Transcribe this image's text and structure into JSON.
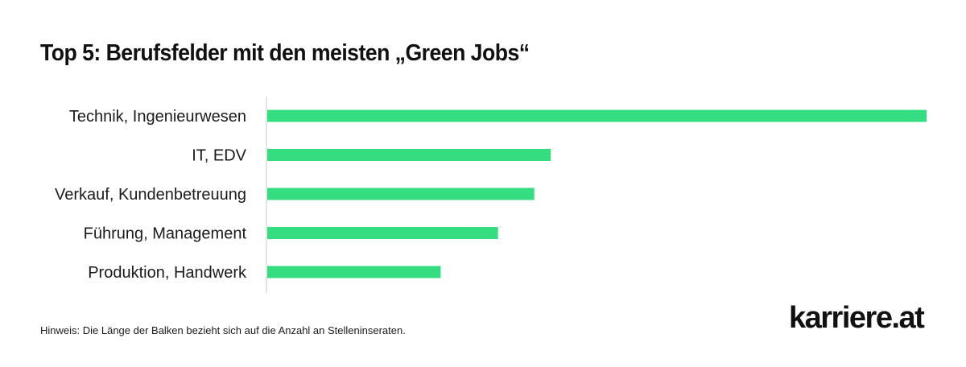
{
  "title": "Top 5: Berufsfelder mit den meisten „Green Jobs“",
  "note": "Hinweis: Die Länge der Balken bezieht sich auf die Anzahl an Stelleninseraten.",
  "logo_text": "karriere.at",
  "colors": {
    "bar": "#34dd80",
    "axis": "#c8c8c8",
    "text": "#1a1a1a"
  },
  "chart_data": {
    "type": "bar",
    "orientation": "horizontal",
    "categories": [
      "Technik, Ingenieurwesen",
      "IT, EDV",
      "Verkauf, Kundenbetreuung",
      "Führung, Management",
      "Produktion, Handwerk"
    ],
    "values": [
      100,
      43,
      40.5,
      35,
      26.3
    ],
    "xlim": [
      0,
      100
    ],
    "value_axis_labels": "none",
    "grid": false,
    "legend": "none",
    "xlabel": "",
    "ylabel": ""
  }
}
